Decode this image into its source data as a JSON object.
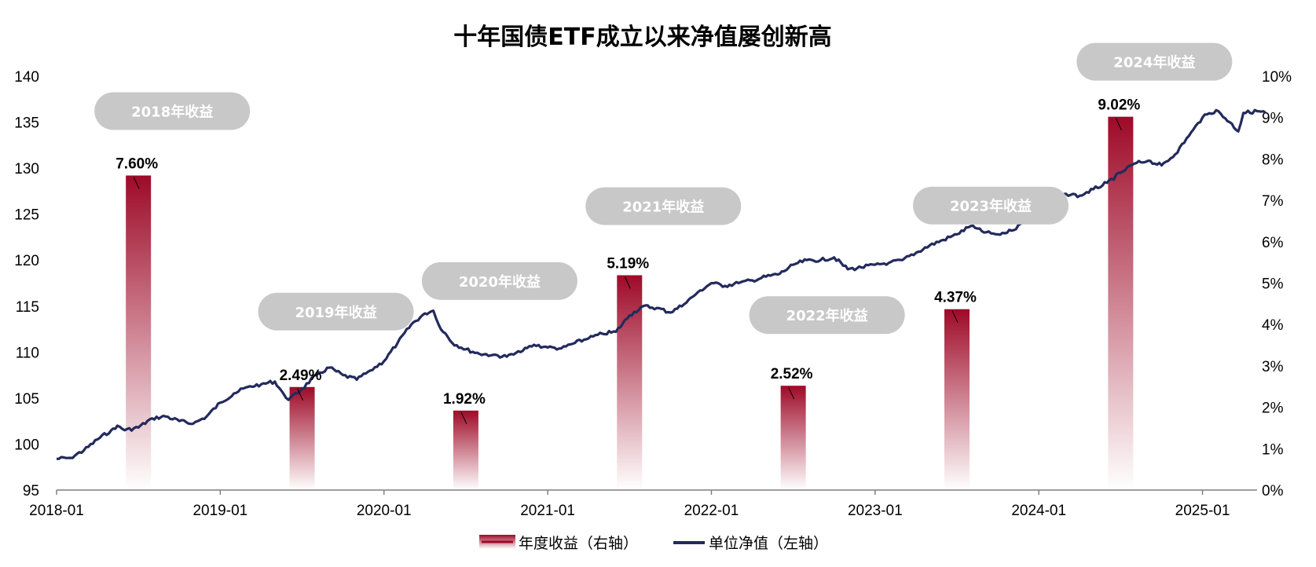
{
  "colors": {
    "bar_top": "#9e0a28",
    "bar_bottom": "#ffffff",
    "nav_line": "#232a5c",
    "pill": "#c8c8c8",
    "axis": "#7f7f7f"
  },
  "chart_data": {
    "type": "bar+line",
    "title": "十年国债ETF成立以来净值屡创新高",
    "x_ticks": [
      "2018-01",
      "2019-01",
      "2020-01",
      "2021-01",
      "2022-01",
      "2023-01",
      "2024-01",
      "2025-01"
    ],
    "y_left_ticks": [
      "95",
      "100",
      "105",
      "110",
      "115",
      "120",
      "125",
      "130",
      "135",
      "140"
    ],
    "y_right_ticks": [
      "0%",
      "1%",
      "2%",
      "3%",
      "4%",
      "5%",
      "6%",
      "7%",
      "8%",
      "9%",
      "10%"
    ],
    "y_left_range": [
      95,
      140
    ],
    "y_right_range": [
      0,
      10
    ],
    "x_range": [
      "2018-01",
      "2025-05"
    ],
    "legend": {
      "bar": "年度收益（右轴）",
      "line": "单位净值（左轴）"
    },
    "bar_series": {
      "name": "年度收益（右轴）",
      "axis": "right",
      "unit": "%",
      "points": [
        {
          "x": "2018-07",
          "value": 7.6,
          "label": "7.60%",
          "year_label": "2018年收益"
        },
        {
          "x": "2019-07",
          "value": 2.49,
          "label": "2.49%",
          "year_label": "2019年收益"
        },
        {
          "x": "2020-07",
          "value": 1.92,
          "label": "1.92%",
          "year_label": "2020年收益"
        },
        {
          "x": "2021-07",
          "value": 5.19,
          "label": "5.19%",
          "year_label": "2021年收益"
        },
        {
          "x": "2022-07",
          "value": 2.52,
          "label": "2.52%",
          "year_label": "2022年收益"
        },
        {
          "x": "2023-07",
          "value": 4.37,
          "label": "4.37%",
          "year_label": "2023年收益"
        },
        {
          "x": "2024-07",
          "value": 9.02,
          "label": "9.02%",
          "year_label": "2024年收益"
        }
      ]
    },
    "line_series": {
      "name": "单位净值（左轴）",
      "axis": "left",
      "points": [
        [
          "2018-01-01",
          98.4
        ],
        [
          "2018-02-01",
          98.5
        ],
        [
          "2018-03-01",
          99.3
        ],
        [
          "2018-04-01",
          100.5
        ],
        [
          "2018-05-01",
          101.5
        ],
        [
          "2018-05-15",
          102.0
        ],
        [
          "2018-06-01",
          101.5
        ],
        [
          "2018-07-01",
          101.8
        ],
        [
          "2018-08-01",
          102.8
        ],
        [
          "2018-09-01",
          103.0
        ],
        [
          "2018-10-01",
          102.5
        ],
        [
          "2018-11-01",
          102.2
        ],
        [
          "2018-12-01",
          103.0
        ],
        [
          "2019-01-01",
          104.5
        ],
        [
          "2019-02-01",
          105.5
        ],
        [
          "2019-03-01",
          106.2
        ],
        [
          "2019-04-01",
          106.5
        ],
        [
          "2019-05-01",
          106.8
        ],
        [
          "2019-05-20",
          105.5
        ],
        [
          "2019-06-01",
          104.8
        ],
        [
          "2019-07-01",
          106.0
        ],
        [
          "2019-08-01",
          107.5
        ],
        [
          "2019-09-01",
          108.3
        ],
        [
          "2019-10-01",
          107.5
        ],
        [
          "2019-11-01",
          107.0
        ],
        [
          "2019-12-01",
          108.0
        ],
        [
          "2020-01-01",
          109.0
        ],
        [
          "2020-02-01",
          111.0
        ],
        [
          "2020-03-01",
          113.0
        ],
        [
          "2020-04-01",
          114.2
        ],
        [
          "2020-04-20",
          114.5
        ],
        [
          "2020-05-01",
          113.0
        ],
        [
          "2020-06-01",
          111.0
        ],
        [
          "2020-07-01",
          110.3
        ],
        [
          "2020-08-01",
          109.8
        ],
        [
          "2020-09-01",
          109.7
        ],
        [
          "2020-10-01",
          109.5
        ],
        [
          "2020-11-01",
          110.0
        ],
        [
          "2020-12-01",
          110.8
        ],
        [
          "2021-01-01",
          110.5
        ],
        [
          "2021-02-01",
          110.4
        ],
        [
          "2021-03-01",
          111.0
        ],
        [
          "2021-04-01",
          111.5
        ],
        [
          "2021-05-01",
          112.0
        ],
        [
          "2021-06-01",
          112.2
        ],
        [
          "2021-07-01",
          114.0
        ],
        [
          "2021-08-01",
          115.0
        ],
        [
          "2021-09-01",
          114.8
        ],
        [
          "2021-10-01",
          114.3
        ],
        [
          "2021-11-01",
          115.2
        ],
        [
          "2021-12-01",
          116.5
        ],
        [
          "2022-01-01",
          117.5
        ],
        [
          "2022-02-01",
          117.2
        ],
        [
          "2022-03-01",
          117.5
        ],
        [
          "2022-04-01",
          117.8
        ],
        [
          "2022-05-01",
          118.2
        ],
        [
          "2022-06-01",
          118.5
        ],
        [
          "2022-07-01",
          119.5
        ],
        [
          "2022-08-01",
          120.0
        ],
        [
          "2022-09-01",
          120.0
        ],
        [
          "2022-10-01",
          120.3
        ],
        [
          "2022-11-01",
          119.0
        ],
        [
          "2022-12-01",
          119.2
        ],
        [
          "2023-01-01",
          119.5
        ],
        [
          "2023-02-01",
          119.7
        ],
        [
          "2023-03-01",
          120.0
        ],
        [
          "2023-04-01",
          120.8
        ],
        [
          "2023-05-01",
          121.6
        ],
        [
          "2023-06-01",
          122.2
        ],
        [
          "2023-07-01",
          122.8
        ],
        [
          "2023-08-01",
          123.7
        ],
        [
          "2023-09-01",
          123.0
        ],
        [
          "2023-10-01",
          122.8
        ],
        [
          "2023-11-01",
          123.2
        ],
        [
          "2023-12-01",
          124.2
        ],
        [
          "2024-01-01",
          125.2
        ],
        [
          "2024-02-01",
          126.5
        ],
        [
          "2024-03-01",
          127.2
        ],
        [
          "2024-04-01",
          127.0
        ],
        [
          "2024-05-01",
          127.7
        ],
        [
          "2024-06-01",
          128.4
        ],
        [
          "2024-07-01",
          129.5
        ],
        [
          "2024-08-01",
          130.5
        ],
        [
          "2024-09-01",
          130.8
        ],
        [
          "2024-10-01",
          130.3
        ],
        [
          "2024-11-01",
          131.5
        ],
        [
          "2024-12-01",
          133.5
        ],
        [
          "2025-01-01",
          135.5
        ],
        [
          "2025-02-01",
          136.3
        ],
        [
          "2025-03-01",
          135.0
        ],
        [
          "2025-03-20",
          134.0
        ],
        [
          "2025-04-01",
          136.0
        ],
        [
          "2025-05-01",
          136.2
        ],
        [
          "2025-05-20",
          136.0
        ]
      ]
    }
  }
}
